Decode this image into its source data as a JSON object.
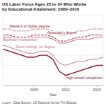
{
  "chart_data": {
    "type": "line",
    "title": "US Labor Force Ages 25 to 34 Who Worke",
    "subtitle": "by Educational Attainment: 2000–2016",
    "xlabel": "Year",
    "annotations": [
      "s.com   Data Source: US National Center For Educat"
    ],
    "x": [
      2000,
      2001,
      2002,
      2003,
      2004,
      2005,
      2006,
      2007,
      2008,
      2009,
      2010,
      2011,
      2012,
      2013,
      2014,
      2015,
      2016
    ],
    "series": [
      {
        "name": "Master's or higher degree",
        "color": "#8b1a2a",
        "line_style": "dotted",
        "values": [
          83,
          83,
          82,
          82,
          82,
          83,
          83,
          83,
          82,
          80,
          80,
          81,
          82,
          82,
          83,
          83,
          83
        ]
      },
      {
        "name": "Associate's degree",
        "color": "#8b1a2a",
        "line_style": "dashed",
        "values": [
          80,
          80,
          79,
          79,
          79,
          80,
          80,
          80,
          79,
          77,
          77,
          78,
          79,
          79,
          80,
          80,
          80
        ]
      },
      {
        "name": "Bachelor's completion",
        "color": "#c06878",
        "line_style": "solid",
        "values": [
          79,
          79,
          78,
          78,
          78,
          79,
          79,
          79,
          78,
          76,
          76,
          77,
          78,
          78,
          78,
          79,
          79
        ]
      },
      {
        "name": "Some college, no degree",
        "color": "#c07888",
        "line_style": "solid",
        "values": [
          75,
          74,
          73,
          72,
          71,
          71,
          72,
          72,
          70,
          66,
          65,
          66,
          67,
          67,
          68,
          68,
          69
        ]
      },
      {
        "name": "High school completion",
        "color": "#8b1a2a",
        "line_style": "solid",
        "values": [
          73,
          72,
          71,
          70,
          69,
          69,
          70,
          70,
          68,
          62,
          60,
          61,
          62,
          63,
          64,
          65,
          65
        ]
      }
    ],
    "xlim": [
      2000,
      2016
    ],
    "ylim": [
      55,
      90
    ],
    "xticks": [
      2005,
      2010,
      2015
    ],
    "yticks": [
      60,
      65,
      70,
      75,
      80,
      85
    ],
    "grid": true,
    "tick_labels": "x"
  }
}
